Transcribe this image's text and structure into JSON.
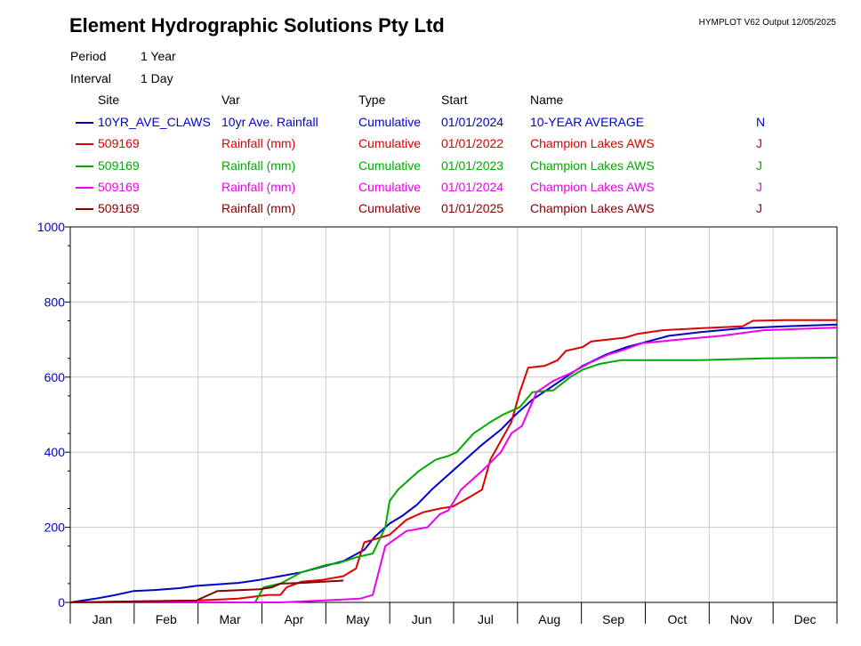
{
  "header": {
    "title": "Element Hydrographic Solutions Pty Ltd",
    "output": "HYMPLOT V62  Output 12/05/2025",
    "period_label": "Period",
    "period_value": "1 Year",
    "interval_label": "Interval",
    "interval_value": "1 Day"
  },
  "legend": {
    "columns": [
      "Site",
      "Var",
      "Type",
      "Start",
      "Name"
    ],
    "rows": [
      {
        "site": "10YR_AVE_CLAWS",
        "var": "10yr Ave. Rainfall",
        "type": "Cumulative",
        "start": "01/01/2024",
        "name": "10-YEAR AVERAGE",
        "flag": "N",
        "color": "#0000cc"
      },
      {
        "site": "509169",
        "var": "Rainfall (mm)",
        "type": "Cumulative",
        "start": "01/01/2022",
        "name": "Champion Lakes AWS",
        "flag": "J",
        "color": "#dd0000"
      },
      {
        "site": "509169",
        "var": "Rainfall (mm)",
        "type": "Cumulative",
        "start": "01/01/2023",
        "name": "Champion Lakes AWS",
        "flag": "J",
        "color": "#00aa00"
      },
      {
        "site": "509169",
        "var": "Rainfall (mm)",
        "type": "Cumulative",
        "start": "01/01/2024",
        "name": "Champion Lakes AWS",
        "flag": "J",
        "color": "#ee00ee"
      },
      {
        "site": "509169",
        "var": "Rainfall (mm)",
        "type": "Cumulative",
        "start": "01/01/2025",
        "name": "Champion Lakes AWS",
        "flag": "J",
        "color": "#880000"
      }
    ]
  },
  "chart_data": {
    "type": "line",
    "xlabel": "",
    "ylabel": "",
    "ylim": [
      0,
      1000
    ],
    "xlim_days": [
      0,
      365
    ],
    "y_ticks": [
      "0",
      "200",
      "400",
      "600",
      "800",
      "1000"
    ],
    "y_tick_values": [
      0,
      200,
      400,
      600,
      800,
      1000
    ],
    "x_month_labels": [
      "Jan",
      "Feb",
      "Mar",
      "Apr",
      "May",
      "Jun",
      "Jul",
      "Aug",
      "Sep",
      "Oct",
      "Nov",
      "Dec"
    ],
    "grid": true,
    "series": [
      {
        "name": "10-YEAR AVERAGE",
        "color": "#0000cc",
        "x": [
          0,
          12,
          20,
          30,
          40,
          52,
          60,
          70,
          80,
          90,
          100,
          110,
          120,
          130,
          140,
          145,
          152,
          158,
          165,
          172,
          180,
          188,
          196,
          205,
          212,
          220,
          228,
          236,
          244,
          255,
          265,
          275,
          285,
          300,
          320,
          340,
          365
        ],
        "y": [
          0,
          10,
          18,
          30,
          33,
          38,
          44,
          48,
          52,
          60,
          70,
          80,
          95,
          110,
          140,
          175,
          210,
          230,
          260,
          300,
          340,
          380,
          420,
          460,
          500,
          540,
          570,
          600,
          630,
          660,
          680,
          695,
          710,
          720,
          730,
          735,
          740
        ]
      },
      {
        "name": "Champion Lakes AWS",
        "color": "#dd0000",
        "x": [
          0,
          60,
          80,
          94,
          100,
          103,
          110,
          120,
          130,
          136,
          140,
          146,
          152,
          160,
          168,
          176,
          182,
          190,
          196,
          200,
          210,
          214,
          218,
          226,
          232,
          236,
          244,
          248,
          256,
          264,
          270,
          282,
          300,
          320,
          325,
          340,
          365
        ],
        "y": [
          0,
          5,
          10,
          20,
          20,
          40,
          55,
          60,
          70,
          90,
          160,
          170,
          180,
          220,
          240,
          250,
          255,
          280,
          300,
          380,
          480,
          560,
          625,
          630,
          645,
          670,
          680,
          695,
          700,
          705,
          715,
          725,
          730,
          735,
          750,
          752,
          752
        ]
      },
      {
        "name": "Champion Lakes AWS",
        "color": "#00aa00",
        "x": [
          0,
          50,
          88,
          92,
          100,
          110,
          122,
          128,
          136,
          144,
          150,
          152,
          156,
          166,
          174,
          180,
          184,
          192,
          200,
          206,
          210,
          214,
          220,
          230,
          238,
          244,
          252,
          262,
          280,
          300,
          330,
          365
        ],
        "y": [
          0,
          0,
          0,
          40,
          50,
          80,
          100,
          105,
          120,
          130,
          200,
          270,
          300,
          350,
          380,
          390,
          400,
          450,
          480,
          500,
          510,
          520,
          560,
          565,
          600,
          620,
          635,
          645,
          645,
          645,
          650,
          652
        ]
      },
      {
        "name": "Champion Lakes AWS",
        "color": "#ee00ee",
        "x": [
          0,
          80,
          100,
          120,
          138,
          144,
          150,
          160,
          170,
          176,
          180,
          186,
          190,
          196,
          205,
          210,
          215,
          222,
          230,
          238,
          248,
          256,
          262,
          272,
          290,
          310,
          330,
          365
        ],
        "y": [
          0,
          0,
          0,
          5,
          10,
          20,
          150,
          190,
          200,
          235,
          245,
          300,
          320,
          350,
          400,
          450,
          470,
          560,
          590,
          610,
          640,
          660,
          670,
          690,
          700,
          710,
          725,
          732
        ]
      },
      {
        "name": "Champion Lakes AWS",
        "color": "#880000",
        "x": [
          0,
          60,
          70,
          90,
          96,
          100,
          110,
          120,
          130
        ],
        "y": [
          0,
          5,
          30,
          35,
          40,
          50,
          52,
          55,
          58
        ]
      }
    ]
  }
}
